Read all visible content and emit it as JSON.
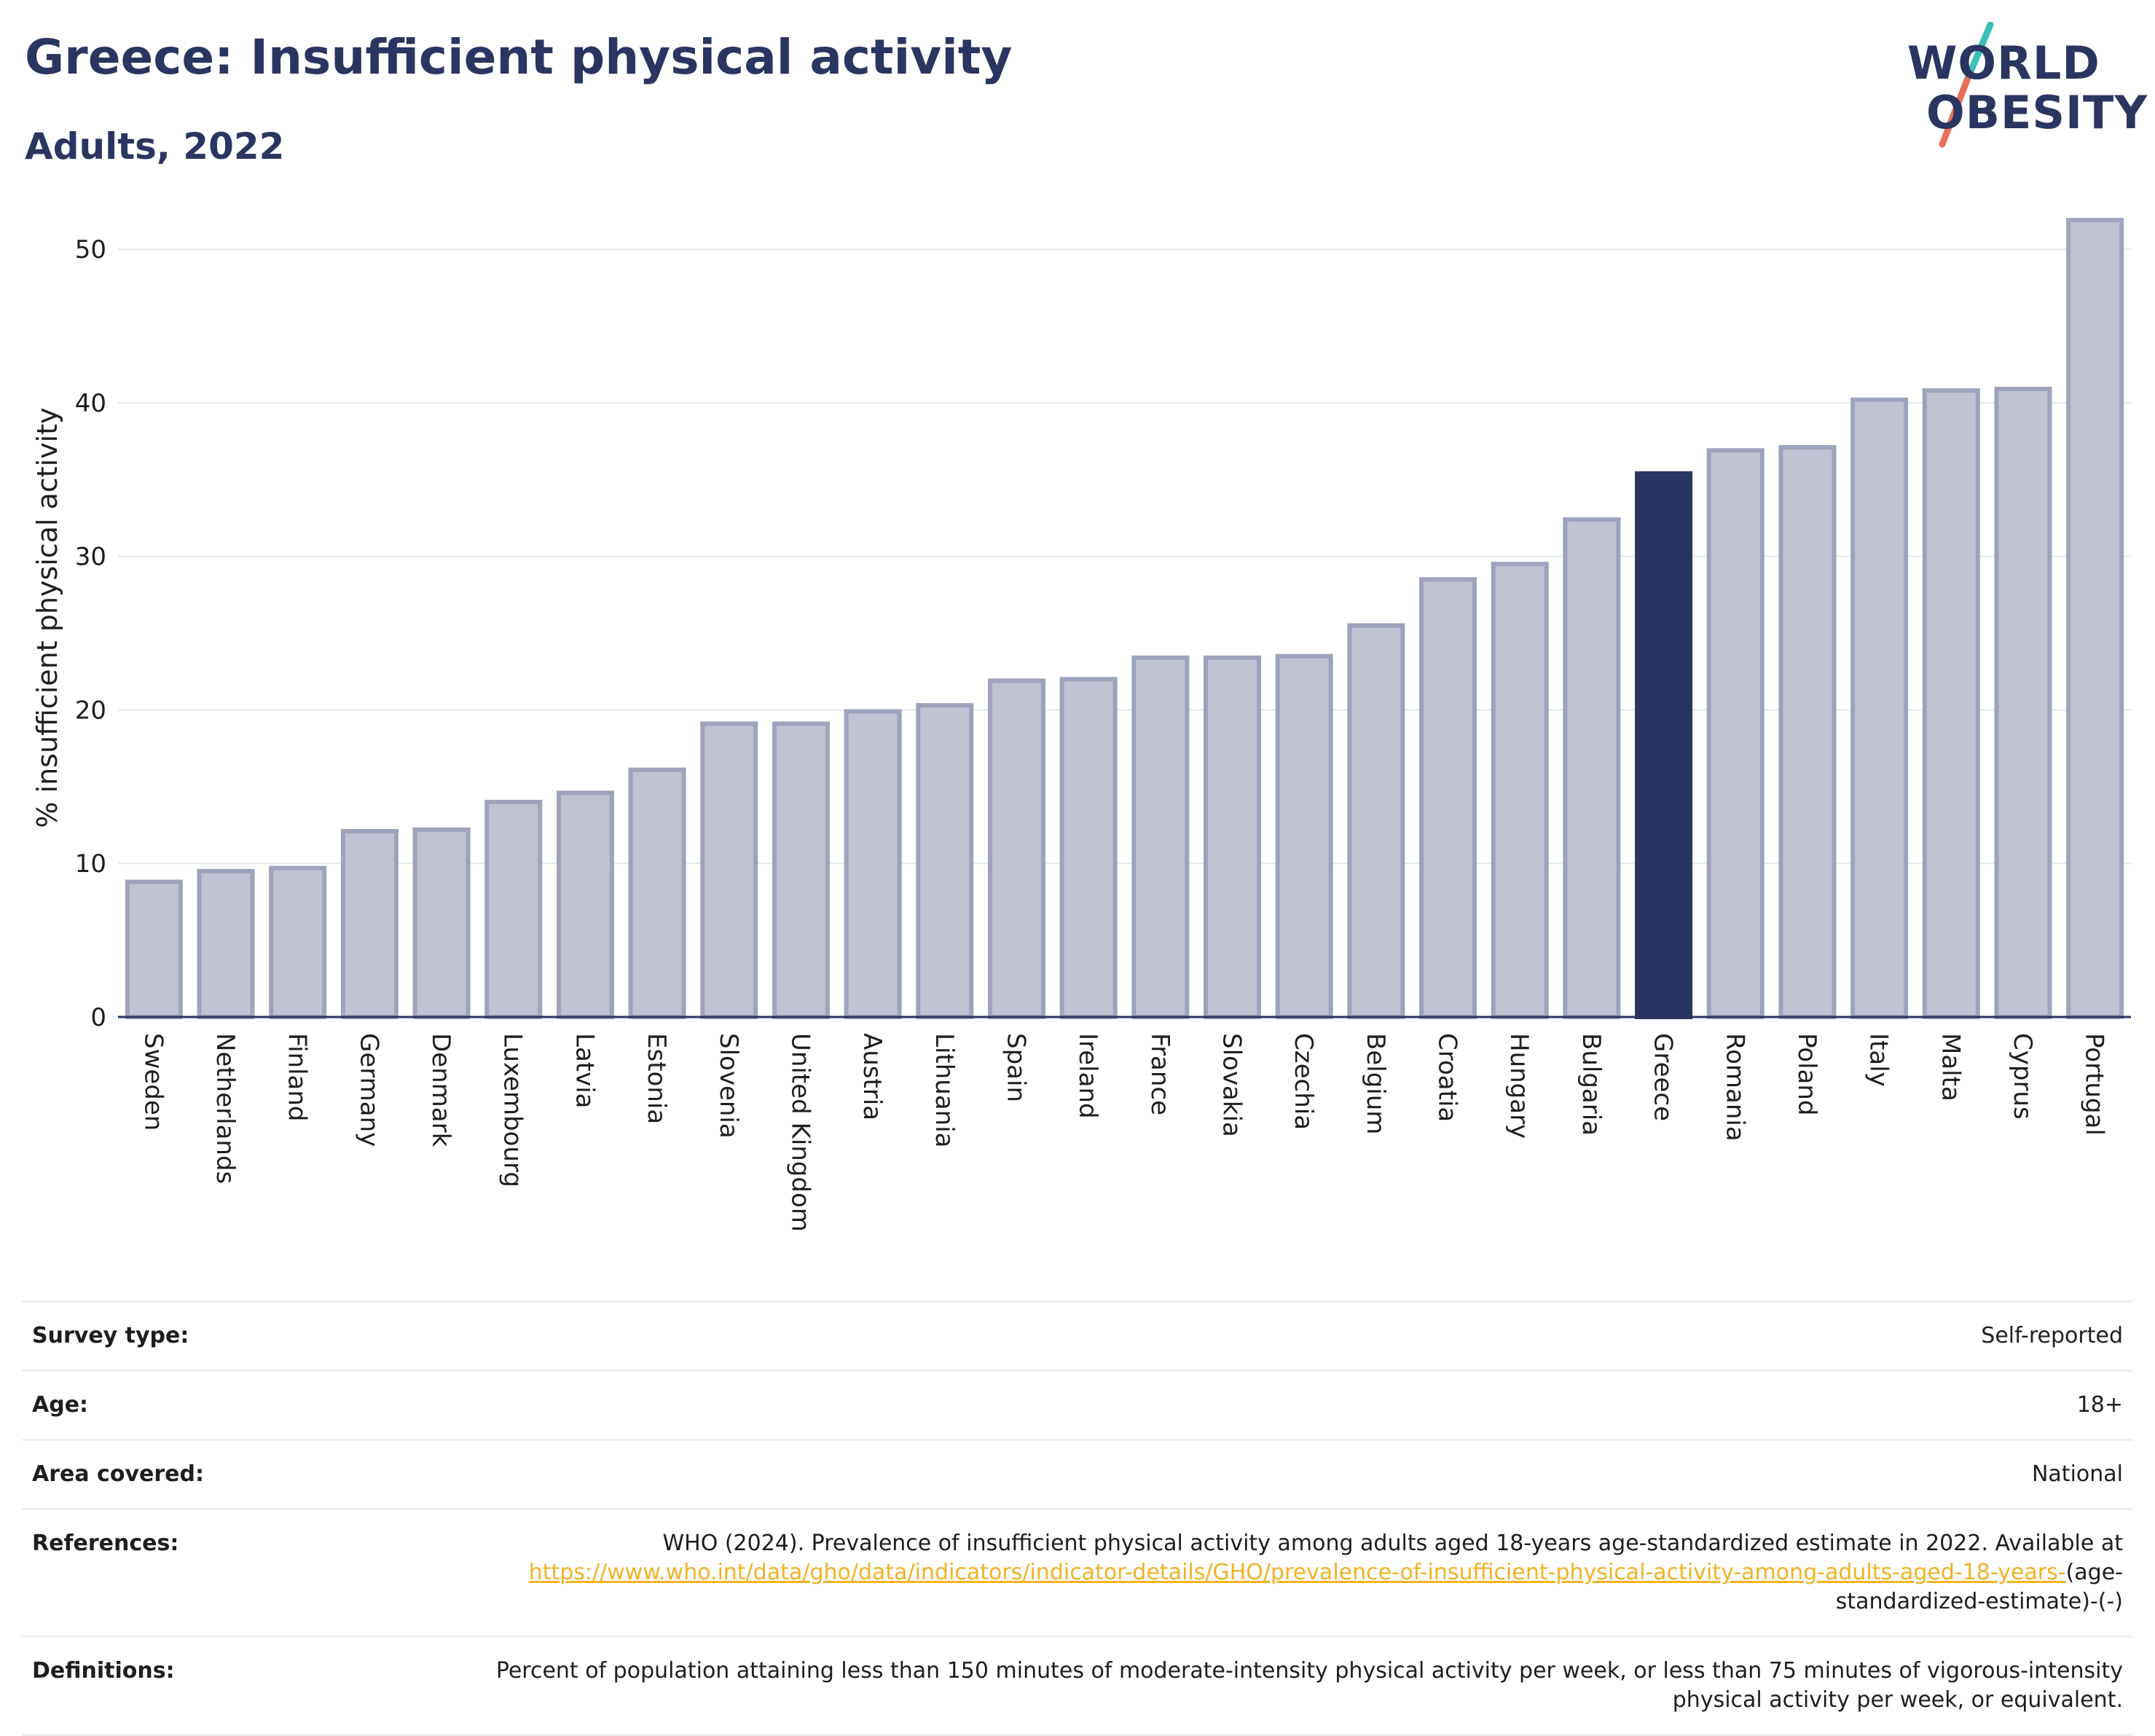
{
  "header": {
    "title": "Greece: Insufficient physical activity",
    "subtitle": "Adults, 2022"
  },
  "logo": {
    "line1": "WORLD",
    "line2": "OBESITY"
  },
  "colors": {
    "highlight": "#2b3561",
    "bar": "#bfc2d0",
    "bar_stroke": "#9ea3bb",
    "link": "#f0b323",
    "logo_teal": "#3bbfb8",
    "logo_coral": "#e8705b"
  },
  "chart_data": {
    "type": "bar",
    "ylabel": "% insufficient physical activity",
    "ylim": [
      0,
      52
    ],
    "yticks": [
      0,
      10,
      20,
      30,
      40,
      50
    ],
    "grid": true,
    "highlight": "Greece",
    "categories": [
      "Sweden",
      "Netherlands",
      "Finland",
      "Germany",
      "Denmark",
      "Luxembourg",
      "Latvia",
      "Estonia",
      "Slovenia",
      "United Kingdom",
      "Austria",
      "Lithuania",
      "Spain",
      "Ireland",
      "France",
      "Slovakia",
      "Czechia",
      "Belgium",
      "Croatia",
      "Hungary",
      "Bulgaria",
      "Greece",
      "Romania",
      "Poland",
      "Italy",
      "Malta",
      "Cyprus",
      "Portugal"
    ],
    "values": [
      8.8,
      9.5,
      9.7,
      12.1,
      12.2,
      14.0,
      14.6,
      16.1,
      19.1,
      19.1,
      19.9,
      20.3,
      21.9,
      22.0,
      23.4,
      23.4,
      23.5,
      25.5,
      28.5,
      29.5,
      32.4,
      35.4,
      36.9,
      37.1,
      40.2,
      40.8,
      40.9,
      51.9
    ]
  },
  "info": {
    "survey_type_label": "Survey type:",
    "survey_type_value": "Self-reported",
    "age_label": "Age:",
    "age_value": "18+",
    "area_label": "Area covered:",
    "area_value": "National",
    "references_label": "References:",
    "references_text": "WHO (2024). Prevalence of insufficient physical activity among adults aged 18-years age-standardized estimate in 2022. Available at",
    "references_link": "https://www.who.int/data/gho/data/indicators/indicator-details/GHO/prevalence-of-insufficient-physical-activity-among-adults-aged-18-years-",
    "references_suffix": "(age-standardized-estimate)-(-)",
    "definitions_label": "Definitions:",
    "definitions_text": "Percent of population attaining less than 150 minutes of moderate-intensity physical activity per week, or less than 75 minutes of vigorous-intensity physical activity per week, or equivalent."
  }
}
